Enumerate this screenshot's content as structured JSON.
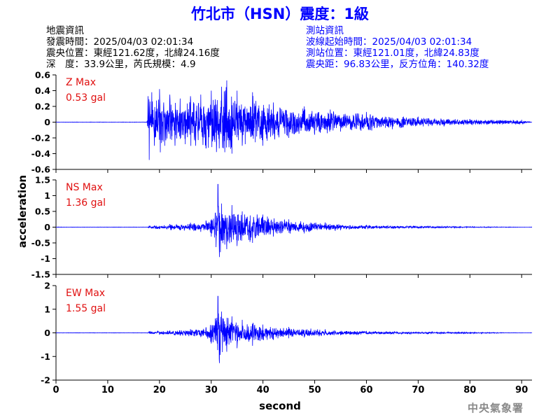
{
  "title": "竹北市（HSN）震度：1級",
  "earthquake_info": {
    "heading": "地震資訊",
    "time": "發震時間：2025/04/03 02:01:34",
    "location": "震央位置：東經121.62度，北緯24.16度",
    "depth_magnitude": "深　度：33.9公里，芮氏規模：4.9"
  },
  "station_info": {
    "heading": "測站資訊",
    "onset_time": "波線起始時間：2025/04/03 02:01:34",
    "location": "測站位置：東經121.01度，北緯24.83度",
    "distance_azimuth": "震央距：96.83公里，反方位角：140.32度"
  },
  "watermark": "中央氣象署",
  "chart_data": {
    "type": "line",
    "x_axis": {
      "label": "second",
      "range": [
        0,
        92
      ],
      "ticks": [
        0,
        10,
        20,
        30,
        40,
        50,
        60,
        70,
        80,
        90
      ]
    },
    "y_axis_label": "acceleration",
    "line_color": "#0000ff",
    "panels": [
      {
        "component": "Z",
        "max_label": "Z Max",
        "max_value": "0.53 gal",
        "ylim": [
          -0.6,
          0.6
        ],
        "ticks": [
          -0.6,
          -0.4,
          -0.2,
          0,
          0.2,
          0.4,
          0.6
        ],
        "tick_labels": [
          "-0.6",
          "-0.4",
          "-0.2",
          "0",
          "0.2",
          "0.4",
          "0.6"
        ],
        "waveform": [
          [
            0,
            0
          ],
          [
            10,
            0
          ],
          [
            17.6,
            0
          ],
          [
            17.8,
            0.33
          ],
          [
            18,
            -0.48
          ],
          [
            18.5,
            0.38
          ],
          [
            19,
            -0.3
          ],
          [
            20,
            0.42
          ],
          [
            21,
            -0.3
          ],
          [
            22,
            0.35
          ],
          [
            23,
            -0.3
          ],
          [
            24,
            0.3
          ],
          [
            25,
            -0.28
          ],
          [
            26,
            0.33
          ],
          [
            27,
            -0.3
          ],
          [
            28,
            0.35
          ],
          [
            29,
            -0.33
          ],
          [
            30,
            0.4
          ],
          [
            31,
            -0.38
          ],
          [
            32,
            0.45
          ],
          [
            33,
            0.53
          ],
          [
            34,
            -0.4
          ],
          [
            35,
            0.4
          ],
          [
            36,
            -0.3
          ],
          [
            38,
            0.38
          ],
          [
            40,
            -0.3
          ],
          [
            42,
            0.25
          ],
          [
            45,
            -0.2
          ],
          [
            48,
            0.2
          ],
          [
            50,
            -0.16
          ],
          [
            53,
            0.16
          ],
          [
            55,
            -0.12
          ],
          [
            60,
            0.13
          ],
          [
            65,
            -0.09
          ],
          [
            70,
            0.07
          ],
          [
            75,
            -0.05
          ],
          [
            80,
            0.04
          ],
          [
            90,
            0.03
          ],
          [
            92,
            0
          ]
        ]
      },
      {
        "component": "NS",
        "max_label": "NS Max",
        "max_value": "1.36 gal",
        "ylim": [
          -1.5,
          1.5
        ],
        "ticks": [
          -1.5,
          -1,
          -0.5,
          0,
          0.5,
          1,
          1.5
        ],
        "tick_labels": [
          "-1.5",
          "-1",
          "-0.5",
          "0",
          "0.5",
          "1",
          "1.5"
        ],
        "waveform": [
          [
            0,
            0
          ],
          [
            17.6,
            0
          ],
          [
            18,
            0.05
          ],
          [
            20,
            -0.06
          ],
          [
            22,
            0.1
          ],
          [
            24,
            -0.1
          ],
          [
            26,
            0.14
          ],
          [
            28,
            -0.15
          ],
          [
            29,
            0.2
          ],
          [
            30,
            -0.3
          ],
          [
            30.8,
            0.45
          ],
          [
            31.3,
            1.36
          ],
          [
            31.6,
            -0.95
          ],
          [
            32,
            0.75
          ],
          [
            33,
            -0.7
          ],
          [
            34,
            0.7
          ],
          [
            35,
            -0.6
          ],
          [
            36,
            0.5
          ],
          [
            38,
            -0.5
          ],
          [
            40,
            0.4
          ],
          [
            42,
            -0.3
          ],
          [
            45,
            0.25
          ],
          [
            48,
            -0.2
          ],
          [
            52,
            0.15
          ],
          [
            55,
            -0.1
          ],
          [
            60,
            0.07
          ],
          [
            70,
            -0.04
          ],
          [
            80,
            0.02
          ],
          [
            92,
            0
          ]
        ]
      },
      {
        "component": "EW",
        "max_label": "EW Max",
        "max_value": "1.55 gal",
        "ylim": [
          -2,
          2
        ],
        "ticks": [
          -2,
          -1,
          0,
          1,
          2
        ],
        "tick_labels": [
          "-2",
          "-1",
          "0",
          "1",
          "2"
        ],
        "waveform": [
          [
            0,
            0
          ],
          [
            17.6,
            0
          ],
          [
            18,
            0.06
          ],
          [
            20,
            -0.08
          ],
          [
            22,
            0.1
          ],
          [
            24,
            -0.12
          ],
          [
            26,
            0.16
          ],
          [
            28,
            -0.18
          ],
          [
            29,
            0.22
          ],
          [
            30,
            -0.45
          ],
          [
            30.8,
            0.6
          ],
          [
            31.3,
            1.55
          ],
          [
            31.6,
            -1.28
          ],
          [
            32,
            0.9
          ],
          [
            33,
            -0.8
          ],
          [
            34,
            0.7
          ],
          [
            35,
            -0.65
          ],
          [
            36,
            0.55
          ],
          [
            38,
            -0.55
          ],
          [
            40,
            0.35
          ],
          [
            42,
            -0.3
          ],
          [
            45,
            0.25
          ],
          [
            48,
            -0.2
          ],
          [
            52,
            0.15
          ],
          [
            55,
            -0.1
          ],
          [
            60,
            0.08
          ],
          [
            70,
            -0.05
          ],
          [
            80,
            0.03
          ],
          [
            92,
            0
          ]
        ]
      }
    ]
  }
}
